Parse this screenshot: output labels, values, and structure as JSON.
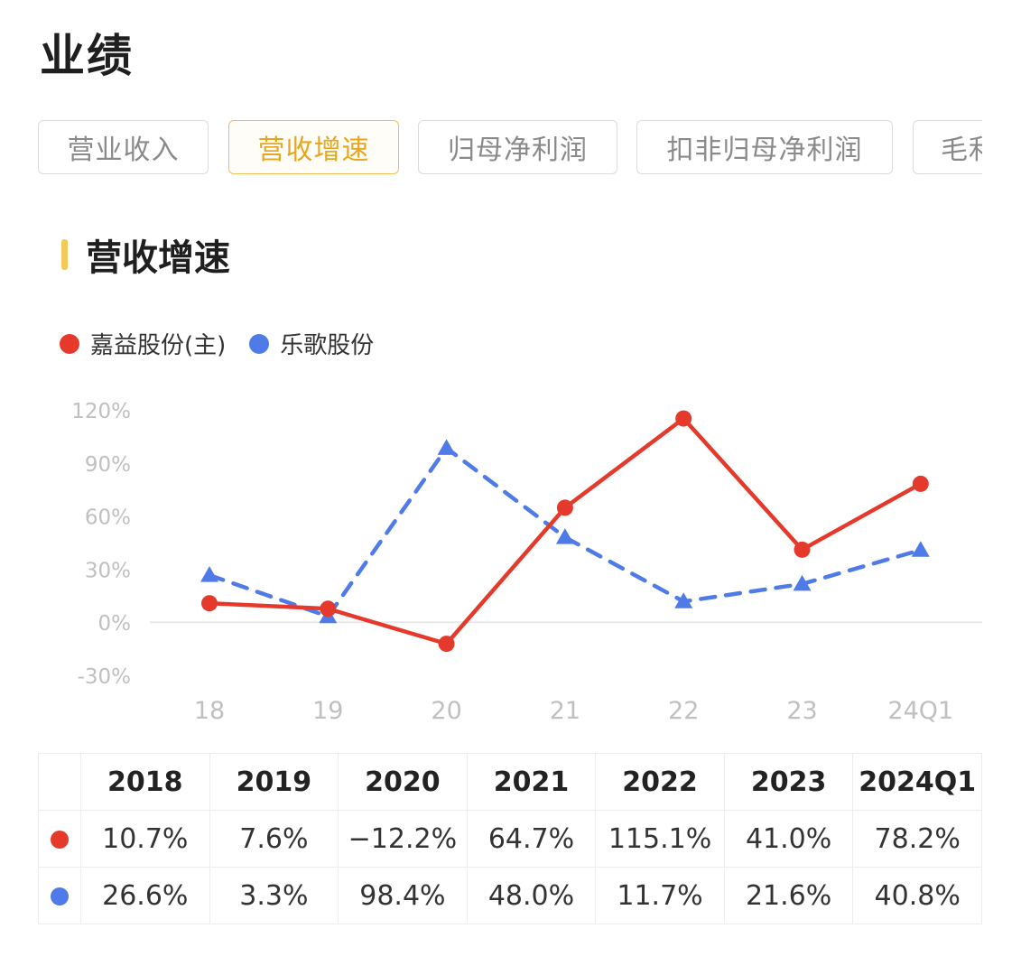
{
  "page": {
    "title": "业绩"
  },
  "tabs": [
    {
      "label": "营业收入",
      "active": false
    },
    {
      "label": "营收增速",
      "active": true
    },
    {
      "label": "归母净利润",
      "active": false
    },
    {
      "label": "扣非归母净利润",
      "active": false
    },
    {
      "label": "毛利率",
      "active": false
    }
  ],
  "section": {
    "title": "营收增速",
    "accent": "#f5c85a"
  },
  "colors": {
    "red": "#e53a2b",
    "blue": "#4f7be8",
    "grid": "#e8e8e8",
    "axis_text": "#c0c0c0"
  },
  "chart_data": {
    "type": "line",
    "title": "",
    "xlabel": "",
    "ylabel": "",
    "categories": [
      "18",
      "19",
      "20",
      "21",
      "22",
      "23",
      "24Q1"
    ],
    "y_ticks": [
      "120%",
      "90%",
      "60%",
      "30%",
      "0%",
      "-30%"
    ],
    "ylim": [
      -30,
      120
    ],
    "grid": "zero-line only",
    "legend_position": "top-left",
    "series": [
      {
        "name": "嘉益股份(主)",
        "color": "#e53a2b",
        "style": "solid",
        "marker": "circle",
        "values": [
          10.7,
          7.6,
          -12.2,
          64.7,
          115.1,
          41.0,
          78.2
        ]
      },
      {
        "name": "乐歌股份",
        "color": "#4f7be8",
        "style": "dashed",
        "marker": "triangle",
        "values": [
          26.6,
          3.3,
          98.4,
          48.0,
          11.7,
          21.6,
          40.8
        ]
      }
    ]
  },
  "table": {
    "headers": [
      "2018",
      "2019",
      "2020",
      "2021",
      "2022",
      "2023",
      "2024Q1"
    ],
    "rows": [
      {
        "color": "#e53a2b",
        "cells": [
          "10.7%",
          "7.6%",
          "−12.2%",
          "64.7%",
          "115.1%",
          "41.0%",
          "78.2%"
        ]
      },
      {
        "color": "#4f7be8",
        "cells": [
          "26.6%",
          "3.3%",
          "98.4%",
          "48.0%",
          "11.7%",
          "21.6%",
          "40.8%"
        ]
      }
    ]
  }
}
